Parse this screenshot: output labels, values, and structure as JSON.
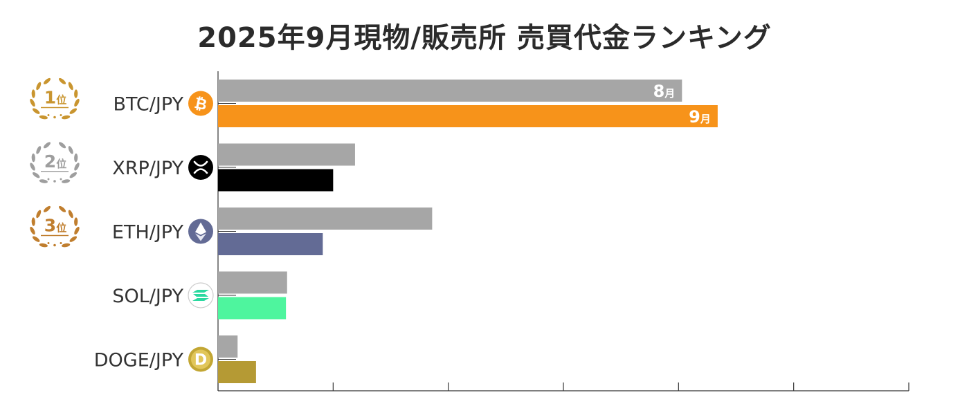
{
  "title": "2025年9月現物/販売所 売買代金ランキング",
  "colors": {
    "august_bar": "#a6a6a6",
    "gold": "#c9952f",
    "silver": "#9e9e9e",
    "bronze": "#c07e2e",
    "axis": "#333333"
  },
  "ranks": [
    {
      "number": "1",
      "suffix": "位",
      "medal": "gold"
    },
    {
      "number": "2",
      "suffix": "位",
      "medal": "silver"
    },
    {
      "number": "3",
      "suffix": "位",
      "medal": "bronze"
    }
  ],
  "chart_data": {
    "type": "bar",
    "orientation": "horizontal",
    "categories": [
      "BTC/JPY",
      "XRP/JPY",
      "ETH/JPY",
      "SOL/JPY",
      "DOGE/JPY"
    ],
    "xlim": [
      0,
      600
    ],
    "series": [
      {
        "name": "8月",
        "values": [
          403,
          119,
          186,
          60,
          17
        ]
      },
      {
        "name": "9月",
        "values": [
          434,
          100,
          91,
          59,
          33
        ]
      }
    ],
    "bar_colors_sep": [
      "#f7931a",
      "#000000",
      "#636b95",
      "#4ef59e",
      "#b59a34"
    ],
    "icons": [
      "bitcoin-icon",
      "xrp-icon",
      "ethereum-icon",
      "solana-icon",
      "dogecoin-icon"
    ],
    "series_labels_on_bars": {
      "category": "BTC/JPY",
      "aug_number": "8",
      "sep_number": "9",
      "suffix": "月"
    },
    "grid": false
  }
}
